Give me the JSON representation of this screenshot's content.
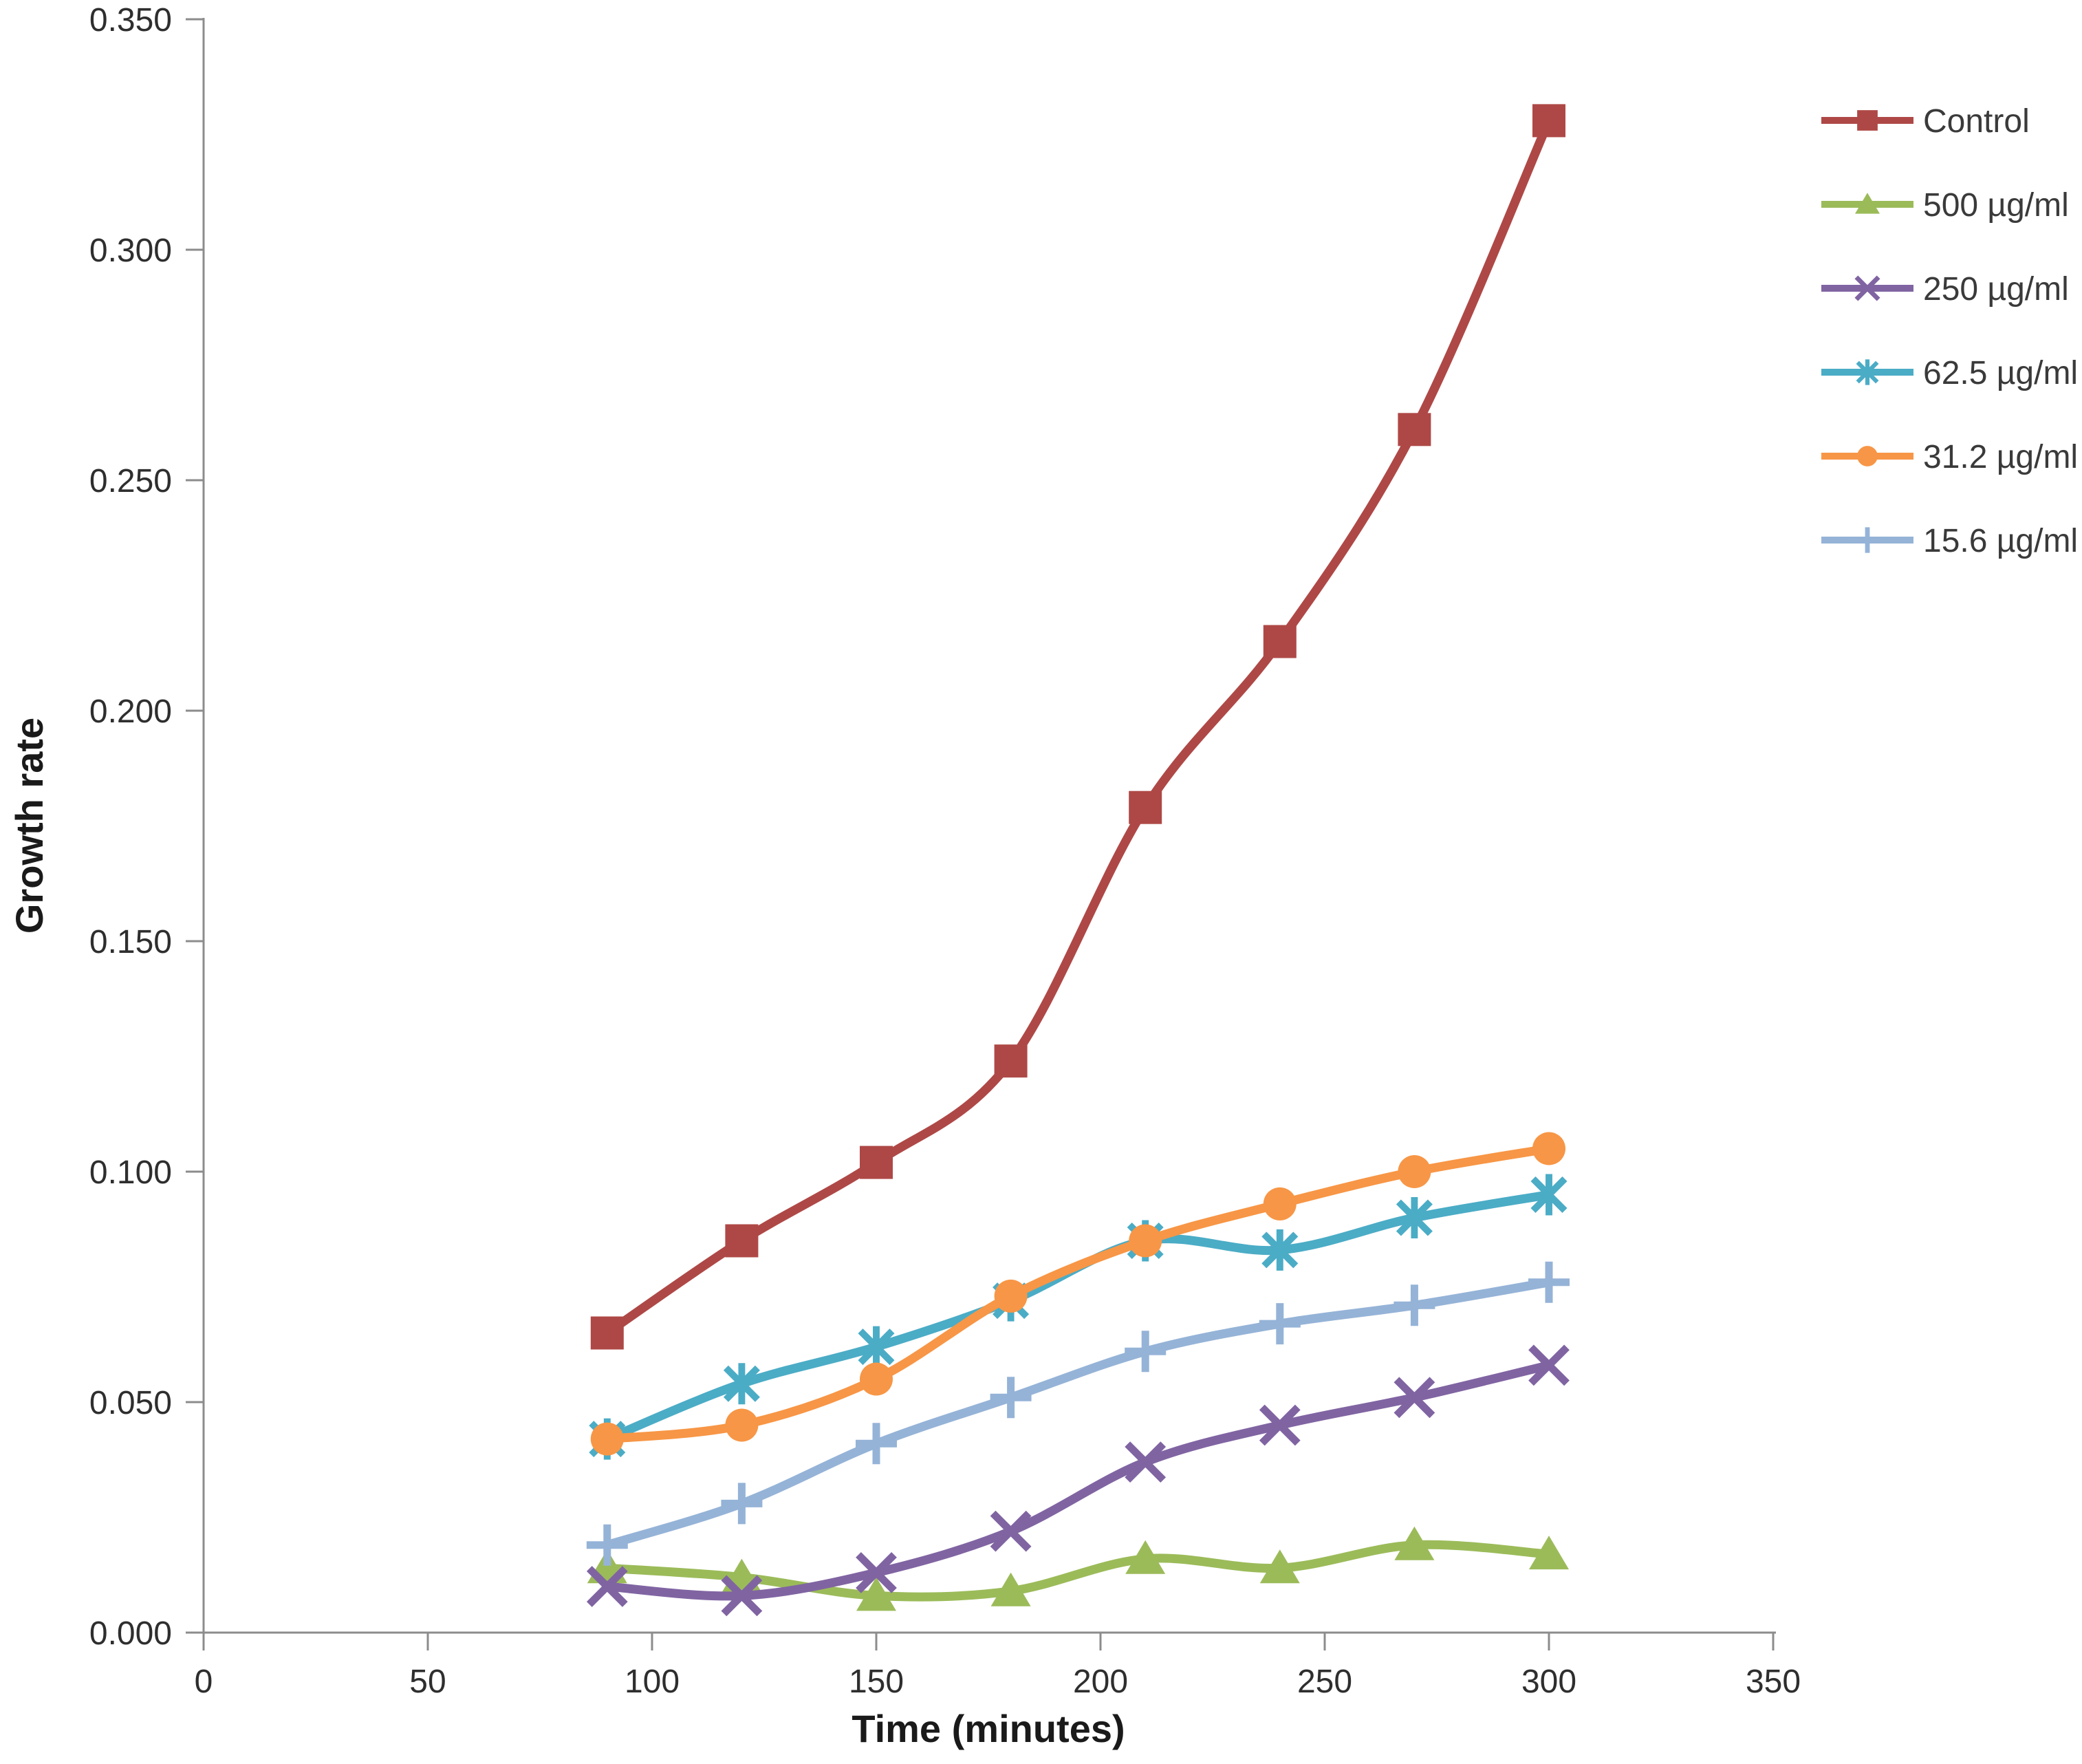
{
  "chart_data": {
    "type": "line",
    "title": "",
    "xlabel": "Time (minutes)",
    "ylabel": "Growth rate",
    "x": [
      90,
      120,
      150,
      180,
      210,
      240,
      270,
      300
    ],
    "series": [
      {
        "name": "Control",
        "color": "#AE4846",
        "marker": "square",
        "values": [
          0.065,
          0.085,
          0.102,
          0.124,
          0.179,
          0.215,
          0.261,
          0.328
        ]
      },
      {
        "name": "500 µg/ml",
        "color": "#9BBB59",
        "marker": "triangle",
        "values": [
          0.014,
          0.012,
          0.008,
          0.009,
          0.016,
          0.014,
          0.019,
          0.017
        ]
      },
      {
        "name": "250 µg/ml",
        "color": "#8064A2",
        "marker": "x",
        "values": [
          0.01,
          0.008,
          0.013,
          0.022,
          0.037,
          0.045,
          0.051,
          0.058
        ]
      },
      {
        "name": "62.5 µg/ml",
        "color": "#4BACC6",
        "marker": "star",
        "values": [
          0.042,
          0.054,
          0.062,
          0.072,
          0.085,
          0.083,
          0.09,
          0.095
        ]
      },
      {
        "name": "31.2 µg/ml",
        "color": "#F79646",
        "marker": "circle",
        "values": [
          0.042,
          0.045,
          0.055,
          0.073,
          0.085,
          0.093,
          0.1,
          0.105
        ]
      },
      {
        "name": "15.6 µg/ml",
        "color": "#95B3D7",
        "marker": "plus",
        "values": [
          0.019,
          0.028,
          0.041,
          0.051,
          0.061,
          0.067,
          0.071,
          0.076
        ]
      }
    ],
    "xlim": [
      0,
      350
    ],
    "ylim": [
      0.0,
      0.35
    ],
    "xticks": {
      "values": [
        0,
        50,
        100,
        150,
        200,
        250,
        300,
        350
      ],
      "labels": [
        "0",
        "50",
        "100",
        "150",
        "200",
        "250",
        "300",
        "350"
      ]
    },
    "yticks": {
      "values": [
        0.0,
        0.05,
        0.1,
        0.15,
        0.2,
        0.25,
        0.3,
        0.35
      ],
      "labels": [
        "0.000",
        "0.050",
        "0.100",
        "0.150",
        "0.200",
        "0.250",
        "0.300",
        "0.350"
      ]
    },
    "grid": false,
    "line_smoothing": true,
    "legend_position": "right",
    "legend_labels": [
      "Control",
      "500 µg/ml",
      "250 µg/ml",
      "62.5 µg/ml",
      "31.2 µg/ml",
      "15.6 µg/ml"
    ]
  },
  "colors": {
    "background": "#FFFFFF",
    "axis_line": "#8C8C8C",
    "tick_text": "#2E2E2E",
    "legend_text": "#3A3A3A",
    "axis_title_text": "#1A1A1A"
  }
}
